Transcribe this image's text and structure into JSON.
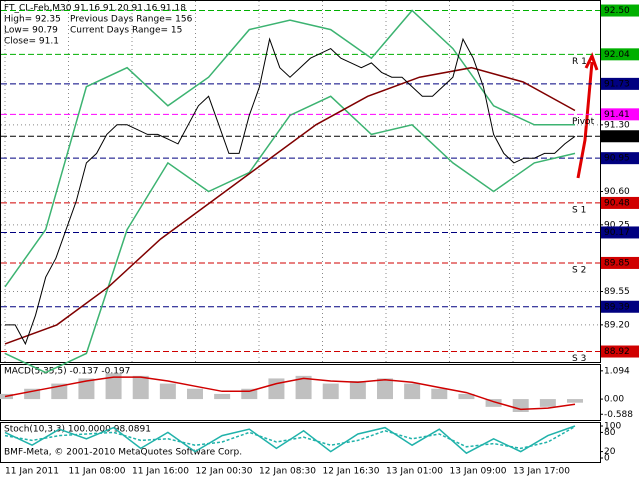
{
  "chart_data": [
    {
      "type": "line",
      "title": "FT_CL-Feb,M30  91.16 91.20 91.16 91.18",
      "annotations": [
        "High= 92.35",
        "Previous Days Range= 156",
        "Low= 90.79",
        "Current Days Range= 15",
        "Close= 91.1"
      ],
      "x_labels": [
        "11 Jan 2011",
        "11 Jan 08:00",
        "11 Jan 16:00",
        "12 Jan 00:30",
        "12 Jan 08:30",
        "12 Jan 16:30",
        "13 Jan 01:00",
        "13 Jan 09:00",
        "13 Jan 17:00"
      ],
      "ylim": [
        88.81,
        92.6
      ],
      "yticks": [
        {
          "value": 91.3,
          "label": "91.30"
        },
        {
          "value": 90.6,
          "label": "90.60"
        },
        {
          "value": 90.25,
          "label": "90.25"
        },
        {
          "value": 89.55,
          "label": "89.55"
        },
        {
          "value": 89.2,
          "label": "89.20"
        }
      ],
      "grid": true,
      "series": [
        {
          "name": "Price",
          "color": "#000000",
          "values": [
            89.2,
            89.2,
            89.0,
            89.3,
            89.7,
            89.9,
            90.2,
            90.5,
            90.9,
            91.0,
            91.2,
            91.3,
            91.3,
            91.25,
            91.2,
            91.2,
            91.15,
            91.1,
            91.3,
            91.5,
            91.6,
            91.3,
            91.0,
            91.0,
            91.4,
            91.7,
            92.2,
            91.9,
            91.8,
            91.9,
            92.0,
            92.05,
            92.1,
            92.0,
            91.95,
            91.9,
            91.95,
            91.85,
            91.8,
            91.8,
            91.7,
            91.6,
            91.6,
            91.7,
            91.8,
            92.2,
            92.0,
            91.7,
            91.2,
            91.0,
            90.9,
            90.95,
            90.95,
            91.0,
            91.0,
            91.1,
            91.18
          ]
        },
        {
          "name": "MA",
          "color": "#800000",
          "values": [
            89.0,
            89.2,
            89.6,
            90.1,
            90.5,
            90.9,
            91.3,
            91.6,
            91.8,
            91.9,
            91.75,
            91.45
          ]
        },
        {
          "name": "Bands Upper",
          "color": "#3cb371",
          "values": [
            89.6,
            90.2,
            91.7,
            91.9,
            91.5,
            91.8,
            92.3,
            92.4,
            92.3,
            92.0,
            92.5,
            92.1,
            91.5,
            91.3,
            91.3
          ]
        },
        {
          "name": "Bands Lower",
          "color": "#3cb371",
          "values": [
            88.9,
            88.7,
            88.9,
            90.2,
            90.9,
            90.6,
            90.8,
            91.4,
            91.6,
            91.2,
            91.3,
            90.9,
            90.6,
            90.9,
            91.0
          ]
        }
      ],
      "levels": [
        {
          "name": null,
          "value": 92.5,
          "label": "92.50",
          "color": "#00b000"
        },
        {
          "name": "R 1",
          "value": 92.04,
          "label": "92.04",
          "color": "#00b000"
        },
        {
          "name": null,
          "value": 91.73,
          "label": "91.73",
          "color": "#000080"
        },
        {
          "name": "Pivot",
          "value": 91.41,
          "label": "91.41",
          "color": "#ff00ff"
        },
        {
          "name": null,
          "value": 91.18,
          "label": "91.18",
          "color": "#000000"
        },
        {
          "name": null,
          "value": 90.95,
          "label": "90.95",
          "color": "#000080"
        },
        {
          "name": "S 1",
          "value": 90.48,
          "label": "90.48",
          "color": "#d00000"
        },
        {
          "name": null,
          "value": 90.17,
          "label": "90.17",
          "color": "#000080"
        },
        {
          "name": "S 2",
          "value": 89.85,
          "label": "89.85",
          "color": "#d00000"
        },
        {
          "name": null,
          "value": 89.39,
          "label": "89.39",
          "color": "#000080"
        },
        {
          "name": "S 3",
          "value": 88.92,
          "label": "88.92",
          "color": "#d00000"
        }
      ]
    },
    {
      "type": "bar",
      "title": "MACD(5,35,5) -0.137 -0.197",
      "ylim": [
        -0.81,
        1.32
      ],
      "yticks": [
        {
          "value": 1.094,
          "label": "1.094"
        },
        {
          "value": 0,
          "label": "0.00"
        },
        {
          "value": -0.588,
          "label": "-0.588"
        }
      ],
      "series": [
        {
          "name": "MACD",
          "color": "#c0c0c0",
          "values": [
            0.2,
            0.4,
            0.6,
            0.8,
            1.0,
            0.9,
            0.6,
            0.4,
            0.2,
            0.4,
            0.8,
            0.9,
            0.6,
            0.7,
            0.8,
            0.6,
            0.4,
            0.2,
            -0.3,
            -0.5,
            -0.3,
            -0.14
          ]
        },
        {
          "name": "Signal",
          "color": "#d00000",
          "values": [
            0.1,
            0.3,
            0.5,
            0.7,
            0.85,
            0.85,
            0.7,
            0.5,
            0.3,
            0.3,
            0.6,
            0.8,
            0.7,
            0.65,
            0.75,
            0.65,
            0.45,
            0.25,
            -0.1,
            -0.4,
            -0.35,
            -0.2
          ]
        }
      ]
    },
    {
      "type": "line",
      "title": "Stoch(10,3,3) 100.0000 98.0891",
      "footer": "BMF-Meta, © 2001-2010 MetaQuotes Software Corp.",
      "ylim": [
        0,
        100
      ],
      "yticks": [
        100,
        80,
        20,
        0
      ],
      "series": [
        {
          "name": "%K",
          "color": "#20b2aa",
          "values": [
            80,
            40,
            90,
            60,
            95,
            30,
            80,
            20,
            70,
            90,
            30,
            85,
            20,
            75,
            95,
            40,
            90,
            15,
            60,
            20,
            70,
            100
          ]
        },
        {
          "name": "%D",
          "color": "#20b2aa",
          "values": [
            70,
            55,
            70,
            75,
            80,
            55,
            60,
            40,
            50,
            80,
            50,
            65,
            40,
            55,
            85,
            60,
            75,
            35,
            45,
            30,
            50,
            98
          ]
        }
      ]
    }
  ]
}
